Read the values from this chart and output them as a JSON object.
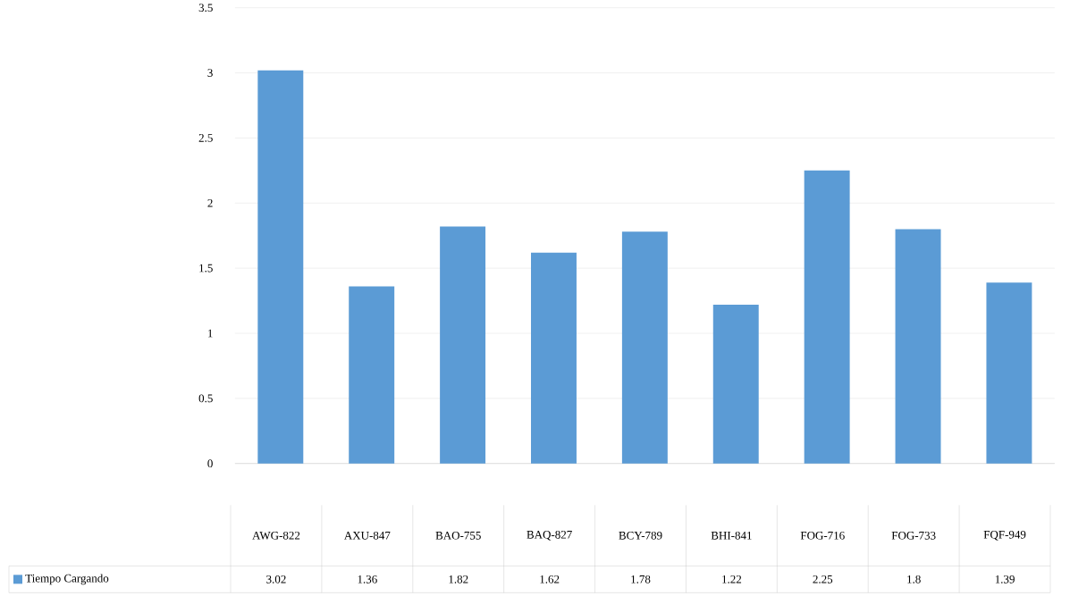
{
  "chart_data": {
    "type": "bar",
    "categories": [
      "AWG-822",
      "AXU-847",
      "BAO-755",
      "BAQ-827",
      "BCY-789",
      "BHI-841",
      "FOG-716",
      "FOG-733",
      "FQF-949"
    ],
    "series": [
      {
        "name": "Tiempo Cargando",
        "color": "#5b9bd5",
        "values": [
          3.02,
          1.36,
          1.82,
          1.62,
          1.78,
          1.22,
          2.25,
          1.8,
          1.39
        ]
      }
    ],
    "ylim": [
      0,
      3.5
    ],
    "yticks": [
      0,
      0.5,
      1,
      1.5,
      2,
      2.5,
      3,
      3.5
    ],
    "grid": "y",
    "legend": "bottom",
    "data_labels": true
  }
}
